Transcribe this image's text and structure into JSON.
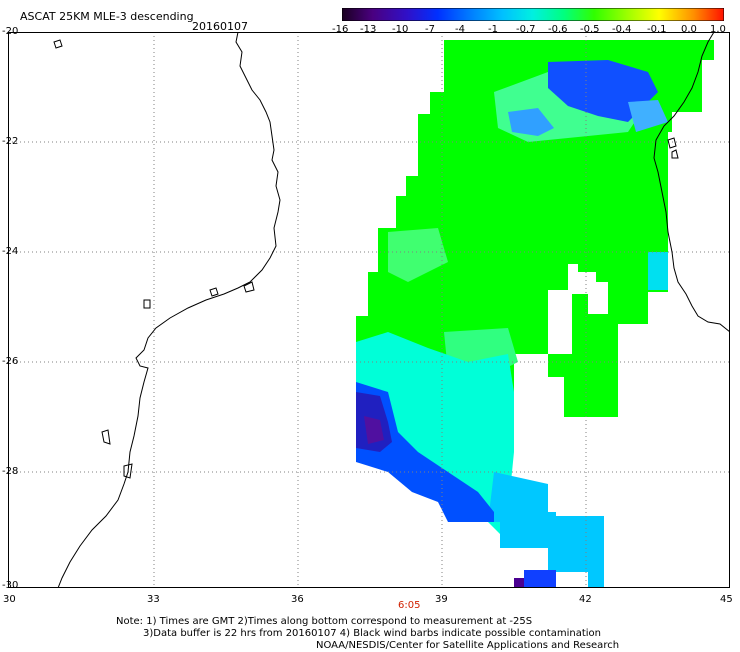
{
  "header": {
    "title": "ASCAT 25KM MLE-3 descending",
    "date": "20160107"
  },
  "colorbar": {
    "labels": [
      "-16",
      "-13",
      "-10",
      "-7",
      "-4",
      "-1",
      "-0.7",
      "-0.6",
      "-0.5",
      "-0.4",
      "-0.1",
      "0.0",
      "1.0"
    ],
    "colors": [
      "#2a0030",
      "#5a0090",
      "#3a10d0",
      "#0a30ff",
      "#0070ff",
      "#00b0ff",
      "#00e0e0",
      "#00ff80",
      "#40ff00",
      "#a0ff00",
      "#ffff00",
      "#ffa000",
      "#ff2000"
    ]
  },
  "axes": {
    "x_ticks": [
      "30",
      "33",
      "36",
      "39",
      "42",
      "45"
    ],
    "y_ticks": [
      "-20",
      "-22",
      "-24",
      "-26",
      "-28",
      "-30"
    ],
    "time_label": "6:05",
    "time_color": "#d02000"
  },
  "notes": {
    "line1": "Note: 1) Times are GMT 2)Times along bottom correspond to measurement at -25S",
    "line2": "3)Data buffer is 22 hrs from 20160107 4) Black wind barbs indicate possible contamination",
    "line3": "NOAA/NESDIS/Center for Satellite Applications and Research"
  },
  "map": {
    "lon_range": [
      30,
      45
    ],
    "lat_range": [
      -30,
      -20
    ],
    "palette": {
      "green": "#00ff00",
      "light_green": "#20ff60",
      "cyan": "#00ffd0",
      "light_blue": "#00c8ff",
      "blue": "#0040ff",
      "dark_blue": "#2020b0",
      "purple": "#5000a0",
      "coast": "#000000",
      "grid": "#888888"
    }
  }
}
